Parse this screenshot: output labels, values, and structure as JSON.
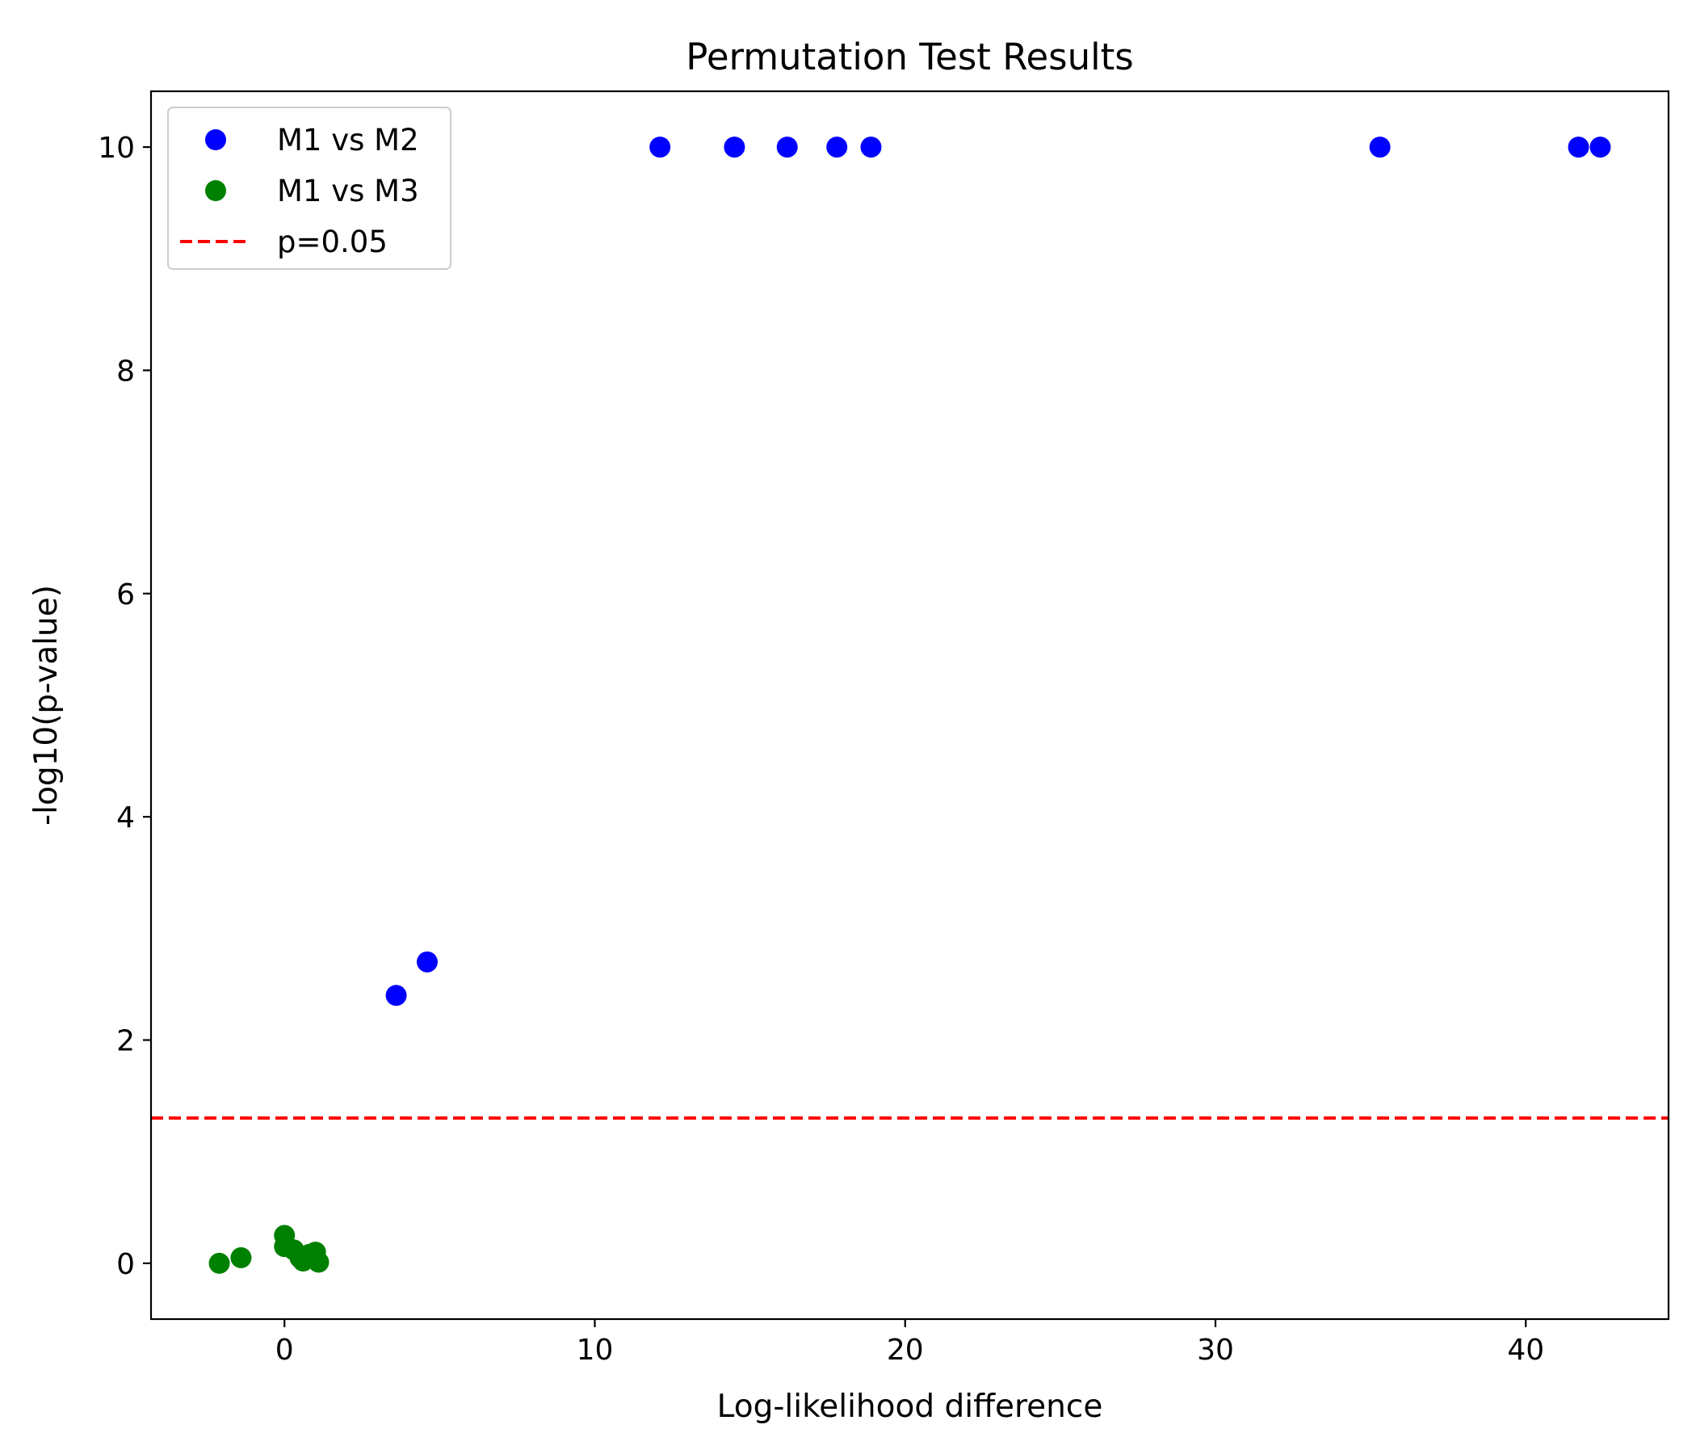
{
  "chart_data": {
    "type": "scatter",
    "title": "Permutation Test Results",
    "xlabel": "Log-likelihood difference",
    "ylabel": "-log10(p-value)",
    "xlim": [
      -4.3,
      44.6
    ],
    "ylim": [
      -0.5,
      10.5
    ],
    "xticks": [
      0,
      10,
      20,
      30,
      40
    ],
    "xtick_labels": [
      "0",
      "10",
      "20",
      "30",
      "40"
    ],
    "yticks": [
      0,
      2,
      4,
      6,
      8,
      10
    ],
    "ytick_labels": [
      "0",
      "2",
      "4",
      "6",
      "8",
      "10"
    ],
    "grid": false,
    "legend_position": "top-left",
    "series": [
      {
        "name": "M1 vs M2",
        "color": "#0000ff",
        "points": [
          {
            "x": 3.6,
            "y": 2.4
          },
          {
            "x": 4.6,
            "y": 2.7
          },
          {
            "x": 12.1,
            "y": 10.0
          },
          {
            "x": 14.5,
            "y": 10.0
          },
          {
            "x": 16.2,
            "y": 10.0
          },
          {
            "x": 17.8,
            "y": 10.0
          },
          {
            "x": 18.9,
            "y": 10.0
          },
          {
            "x": 35.3,
            "y": 10.0
          },
          {
            "x": 41.7,
            "y": 10.0
          },
          {
            "x": 42.4,
            "y": 10.0
          }
        ]
      },
      {
        "name": "M1 vs M3",
        "color": "#008000",
        "points": [
          {
            "x": -2.1,
            "y": 0.0
          },
          {
            "x": -1.4,
            "y": 0.05
          },
          {
            "x": 0.0,
            "y": 0.25
          },
          {
            "x": 0.0,
            "y": 0.15
          },
          {
            "x": 0.3,
            "y": 0.12
          },
          {
            "x": 0.5,
            "y": 0.05
          },
          {
            "x": 0.6,
            "y": 0.02
          },
          {
            "x": 0.8,
            "y": 0.08
          },
          {
            "x": 1.0,
            "y": 0.1
          },
          {
            "x": 1.1,
            "y": 0.01
          }
        ]
      }
    ],
    "reference_lines": [
      {
        "name": "p=0.05",
        "y": 1.301,
        "color": "#ff0000",
        "style": "dashed"
      }
    ]
  }
}
